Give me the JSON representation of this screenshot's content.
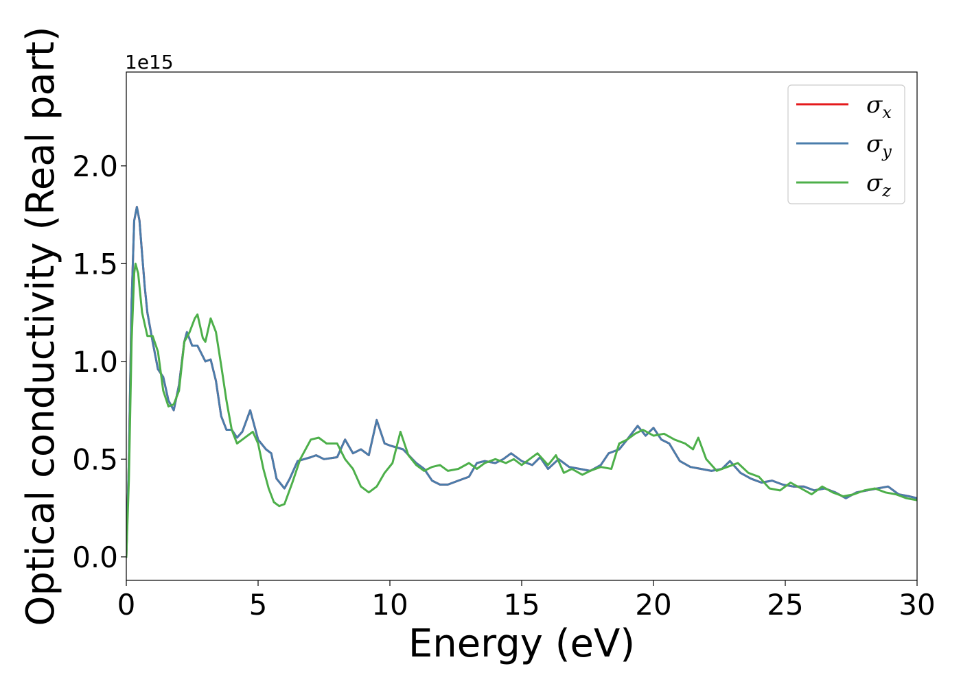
{
  "chart_data": {
    "type": "line",
    "title": "",
    "xlabel": "Energy (eV)",
    "ylabel": "Optical conductivity (Real part)",
    "y_offset_text": "1e15",
    "xlim": [
      0,
      30
    ],
    "ylim": [
      -0.12,
      2.48
    ],
    "x_ticks": [
      0,
      5,
      10,
      15,
      20,
      25,
      30
    ],
    "x_tick_labels": [
      "0",
      "5",
      "10",
      "15",
      "20",
      "25",
      "30"
    ],
    "y_ticks": [
      0.0,
      0.5,
      1.0,
      1.5,
      2.0
    ],
    "y_tick_labels": [
      "0.0",
      "0.5",
      "1.0",
      "1.5",
      "2.0"
    ],
    "grid": false,
    "legend_position": "top-right",
    "series": [
      {
        "name": "σx",
        "symbol": "σ",
        "subscript": "x",
        "color": "#e41a1c",
        "points": [
          [
            0,
            0
          ],
          [
            0.1,
            0.5
          ],
          [
            0.2,
            1.3
          ],
          [
            0.3,
            1.72
          ],
          [
            0.4,
            1.79
          ],
          [
            0.5,
            1.72
          ],
          [
            0.6,
            1.55
          ],
          [
            0.7,
            1.38
          ],
          [
            0.8,
            1.25
          ],
          [
            1.0,
            1.1
          ],
          [
            1.2,
            0.96
          ],
          [
            1.4,
            0.92
          ],
          [
            1.6,
            0.8
          ],
          [
            1.8,
            0.75
          ],
          [
            2.0,
            0.88
          ],
          [
            2.2,
            1.1
          ],
          [
            2.3,
            1.15
          ],
          [
            2.5,
            1.08
          ],
          [
            2.7,
            1.08
          ],
          [
            3.0,
            1.0
          ],
          [
            3.2,
            1.01
          ],
          [
            3.4,
            0.9
          ],
          [
            3.6,
            0.72
          ],
          [
            3.8,
            0.65
          ],
          [
            4.0,
            0.65
          ],
          [
            4.2,
            0.61
          ],
          [
            4.4,
            0.64
          ],
          [
            4.7,
            0.75
          ],
          [
            5.0,
            0.6
          ],
          [
            5.3,
            0.55
          ],
          [
            5.5,
            0.53
          ],
          [
            5.7,
            0.4
          ],
          [
            6.0,
            0.35
          ],
          [
            6.2,
            0.4
          ],
          [
            6.5,
            0.49
          ],
          [
            7.0,
            0.51
          ],
          [
            7.2,
            0.52
          ],
          [
            7.5,
            0.5
          ],
          [
            8.0,
            0.51
          ],
          [
            8.3,
            0.6
          ],
          [
            8.6,
            0.53
          ],
          [
            8.9,
            0.55
          ],
          [
            9.2,
            0.52
          ],
          [
            9.5,
            0.7
          ],
          [
            9.8,
            0.58
          ],
          [
            10.0,
            0.57
          ],
          [
            10.5,
            0.55
          ],
          [
            11.0,
            0.48
          ],
          [
            11.3,
            0.45
          ],
          [
            11.6,
            0.39
          ],
          [
            11.9,
            0.37
          ],
          [
            12.2,
            0.37
          ],
          [
            12.6,
            0.39
          ],
          [
            13.0,
            0.41
          ],
          [
            13.3,
            0.48
          ],
          [
            13.6,
            0.49
          ],
          [
            14.0,
            0.48
          ],
          [
            14.3,
            0.5
          ],
          [
            14.6,
            0.53
          ],
          [
            15.0,
            0.49
          ],
          [
            15.4,
            0.47
          ],
          [
            15.7,
            0.51
          ],
          [
            16.0,
            0.45
          ],
          [
            16.4,
            0.5
          ],
          [
            16.8,
            0.46
          ],
          [
            17.2,
            0.45
          ],
          [
            17.6,
            0.44
          ],
          [
            18.0,
            0.47
          ],
          [
            18.3,
            0.53
          ],
          [
            18.7,
            0.55
          ],
          [
            19.0,
            0.6
          ],
          [
            19.4,
            0.67
          ],
          [
            19.7,
            0.62
          ],
          [
            20.0,
            0.66
          ],
          [
            20.3,
            0.6
          ],
          [
            20.6,
            0.58
          ],
          [
            21.0,
            0.49
          ],
          [
            21.4,
            0.46
          ],
          [
            21.8,
            0.45
          ],
          [
            22.2,
            0.44
          ],
          [
            22.6,
            0.45
          ],
          [
            22.9,
            0.49
          ],
          [
            23.3,
            0.43
          ],
          [
            23.7,
            0.4
          ],
          [
            24.1,
            0.38
          ],
          [
            24.5,
            0.39
          ],
          [
            24.9,
            0.37
          ],
          [
            25.3,
            0.36
          ],
          [
            25.7,
            0.36
          ],
          [
            26.1,
            0.34
          ],
          [
            26.5,
            0.35
          ],
          [
            26.9,
            0.33
          ],
          [
            27.3,
            0.3
          ],
          [
            27.7,
            0.33
          ],
          [
            28.1,
            0.34
          ],
          [
            28.5,
            0.35
          ],
          [
            28.9,
            0.36
          ],
          [
            29.3,
            0.32
          ],
          [
            29.7,
            0.31
          ],
          [
            30.0,
            0.3
          ]
        ]
      },
      {
        "name": "σy",
        "symbol": "σ",
        "subscript": "y",
        "color": "#4a7dab",
        "points": [
          [
            0,
            0
          ],
          [
            0.1,
            0.5
          ],
          [
            0.2,
            1.3
          ],
          [
            0.3,
            1.72
          ],
          [
            0.4,
            1.79
          ],
          [
            0.5,
            1.72
          ],
          [
            0.6,
            1.55
          ],
          [
            0.7,
            1.38
          ],
          [
            0.8,
            1.25
          ],
          [
            1.0,
            1.1
          ],
          [
            1.2,
            0.96
          ],
          [
            1.4,
            0.92
          ],
          [
            1.6,
            0.8
          ],
          [
            1.8,
            0.75
          ],
          [
            2.0,
            0.88
          ],
          [
            2.2,
            1.1
          ],
          [
            2.3,
            1.15
          ],
          [
            2.5,
            1.08
          ],
          [
            2.7,
            1.08
          ],
          [
            3.0,
            1.0
          ],
          [
            3.2,
            1.01
          ],
          [
            3.4,
            0.9
          ],
          [
            3.6,
            0.72
          ],
          [
            3.8,
            0.65
          ],
          [
            4.0,
            0.65
          ],
          [
            4.2,
            0.61
          ],
          [
            4.4,
            0.64
          ],
          [
            4.7,
            0.75
          ],
          [
            5.0,
            0.6
          ],
          [
            5.3,
            0.55
          ],
          [
            5.5,
            0.53
          ],
          [
            5.7,
            0.4
          ],
          [
            6.0,
            0.35
          ],
          [
            6.2,
            0.4
          ],
          [
            6.5,
            0.49
          ],
          [
            7.0,
            0.51
          ],
          [
            7.2,
            0.52
          ],
          [
            7.5,
            0.5
          ],
          [
            8.0,
            0.51
          ],
          [
            8.3,
            0.6
          ],
          [
            8.6,
            0.53
          ],
          [
            8.9,
            0.55
          ],
          [
            9.2,
            0.52
          ],
          [
            9.5,
            0.7
          ],
          [
            9.8,
            0.58
          ],
          [
            10.0,
            0.57
          ],
          [
            10.5,
            0.55
          ],
          [
            11.0,
            0.48
          ],
          [
            11.3,
            0.45
          ],
          [
            11.6,
            0.39
          ],
          [
            11.9,
            0.37
          ],
          [
            12.2,
            0.37
          ],
          [
            12.6,
            0.39
          ],
          [
            13.0,
            0.41
          ],
          [
            13.3,
            0.48
          ],
          [
            13.6,
            0.49
          ],
          [
            14.0,
            0.48
          ],
          [
            14.3,
            0.5
          ],
          [
            14.6,
            0.53
          ],
          [
            15.0,
            0.49
          ],
          [
            15.4,
            0.47
          ],
          [
            15.7,
            0.51
          ],
          [
            16.0,
            0.45
          ],
          [
            16.4,
            0.5
          ],
          [
            16.8,
            0.46
          ],
          [
            17.2,
            0.45
          ],
          [
            17.6,
            0.44
          ],
          [
            18.0,
            0.47
          ],
          [
            18.3,
            0.53
          ],
          [
            18.7,
            0.55
          ],
          [
            19.0,
            0.6
          ],
          [
            19.4,
            0.67
          ],
          [
            19.7,
            0.62
          ],
          [
            20.0,
            0.66
          ],
          [
            20.3,
            0.6
          ],
          [
            20.6,
            0.58
          ],
          [
            21.0,
            0.49
          ],
          [
            21.4,
            0.46
          ],
          [
            21.8,
            0.45
          ],
          [
            22.2,
            0.44
          ],
          [
            22.6,
            0.45
          ],
          [
            22.9,
            0.49
          ],
          [
            23.3,
            0.43
          ],
          [
            23.7,
            0.4
          ],
          [
            24.1,
            0.38
          ],
          [
            24.5,
            0.39
          ],
          [
            24.9,
            0.37
          ],
          [
            25.3,
            0.36
          ],
          [
            25.7,
            0.36
          ],
          [
            26.1,
            0.34
          ],
          [
            26.5,
            0.35
          ],
          [
            26.9,
            0.33
          ],
          [
            27.3,
            0.3
          ],
          [
            27.7,
            0.33
          ],
          [
            28.1,
            0.34
          ],
          [
            28.5,
            0.35
          ],
          [
            28.9,
            0.36
          ],
          [
            29.3,
            0.32
          ],
          [
            29.7,
            0.31
          ],
          [
            30.0,
            0.3
          ]
        ]
      },
      {
        "name": "σz",
        "symbol": "σ",
        "subscript": "z",
        "color": "#4daf4a",
        "points": [
          [
            0,
            0
          ],
          [
            0.1,
            0.4
          ],
          [
            0.2,
            1.1
          ],
          [
            0.3,
            1.45
          ],
          [
            0.35,
            1.5
          ],
          [
            0.45,
            1.45
          ],
          [
            0.6,
            1.25
          ],
          [
            0.8,
            1.13
          ],
          [
            1.0,
            1.13
          ],
          [
            1.2,
            1.05
          ],
          [
            1.4,
            0.85
          ],
          [
            1.6,
            0.77
          ],
          [
            1.8,
            0.78
          ],
          [
            2.0,
            0.85
          ],
          [
            2.2,
            1.1
          ],
          [
            2.4,
            1.15
          ],
          [
            2.6,
            1.22
          ],
          [
            2.7,
            1.24
          ],
          [
            2.9,
            1.12
          ],
          [
            3.0,
            1.1
          ],
          [
            3.2,
            1.22
          ],
          [
            3.4,
            1.15
          ],
          [
            3.6,
            0.98
          ],
          [
            3.8,
            0.8
          ],
          [
            4.0,
            0.65
          ],
          [
            4.2,
            0.58
          ],
          [
            4.4,
            0.6
          ],
          [
            4.6,
            0.62
          ],
          [
            4.8,
            0.64
          ],
          [
            5.0,
            0.58
          ],
          [
            5.2,
            0.45
          ],
          [
            5.4,
            0.35
          ],
          [
            5.6,
            0.28
          ],
          [
            5.8,
            0.26
          ],
          [
            6.0,
            0.27
          ],
          [
            6.3,
            0.38
          ],
          [
            6.6,
            0.5
          ],
          [
            7.0,
            0.6
          ],
          [
            7.3,
            0.61
          ],
          [
            7.6,
            0.58
          ],
          [
            8.0,
            0.58
          ],
          [
            8.3,
            0.5
          ],
          [
            8.6,
            0.45
          ],
          [
            8.9,
            0.36
          ],
          [
            9.2,
            0.33
          ],
          [
            9.5,
            0.36
          ],
          [
            9.8,
            0.43
          ],
          [
            10.1,
            0.48
          ],
          [
            10.4,
            0.64
          ],
          [
            10.7,
            0.52
          ],
          [
            11.0,
            0.47
          ],
          [
            11.3,
            0.44
          ],
          [
            11.6,
            0.46
          ],
          [
            11.9,
            0.47
          ],
          [
            12.2,
            0.44
          ],
          [
            12.6,
            0.45
          ],
          [
            13.0,
            0.48
          ],
          [
            13.3,
            0.45
          ],
          [
            13.6,
            0.48
          ],
          [
            14.0,
            0.5
          ],
          [
            14.4,
            0.48
          ],
          [
            14.7,
            0.5
          ],
          [
            15.0,
            0.47
          ],
          [
            15.3,
            0.5
          ],
          [
            15.6,
            0.53
          ],
          [
            16.0,
            0.47
          ],
          [
            16.3,
            0.52
          ],
          [
            16.6,
            0.43
          ],
          [
            16.9,
            0.45
          ],
          [
            17.3,
            0.42
          ],
          [
            17.6,
            0.44
          ],
          [
            18.0,
            0.46
          ],
          [
            18.4,
            0.45
          ],
          [
            18.7,
            0.58
          ],
          [
            19.0,
            0.6
          ],
          [
            19.3,
            0.63
          ],
          [
            19.6,
            0.65
          ],
          [
            20.0,
            0.62
          ],
          [
            20.4,
            0.63
          ],
          [
            20.8,
            0.6
          ],
          [
            21.2,
            0.58
          ],
          [
            21.5,
            0.55
          ],
          [
            21.7,
            0.61
          ],
          [
            22.0,
            0.5
          ],
          [
            22.4,
            0.44
          ],
          [
            22.8,
            0.46
          ],
          [
            23.2,
            0.48
          ],
          [
            23.6,
            0.43
          ],
          [
            24.0,
            0.41
          ],
          [
            24.4,
            0.35
          ],
          [
            24.8,
            0.34
          ],
          [
            25.2,
            0.38
          ],
          [
            25.6,
            0.35
          ],
          [
            26.0,
            0.32
          ],
          [
            26.4,
            0.36
          ],
          [
            26.8,
            0.33
          ],
          [
            27.2,
            0.31
          ],
          [
            27.6,
            0.32
          ],
          [
            28.0,
            0.34
          ],
          [
            28.4,
            0.35
          ],
          [
            28.8,
            0.33
          ],
          [
            29.2,
            0.32
          ],
          [
            29.6,
            0.3
          ],
          [
            30.0,
            0.29
          ]
        ]
      }
    ]
  }
}
